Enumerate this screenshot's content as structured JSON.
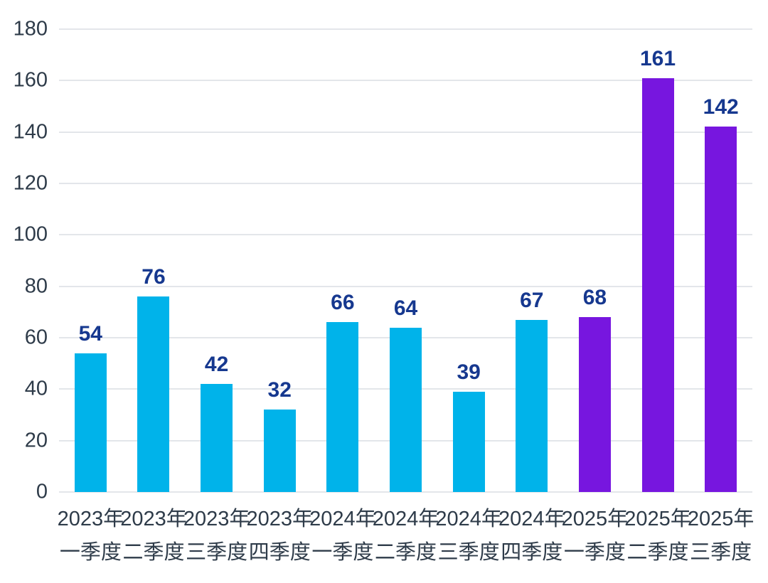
{
  "chart_data": {
    "type": "bar",
    "title": "",
    "xlabel": "",
    "ylabel": "",
    "categories": [
      {
        "line1": "2023年",
        "line2": "一季度"
      },
      {
        "line1": "2023年",
        "line2": "二季度"
      },
      {
        "line1": "2023年",
        "line2": "三季度"
      },
      {
        "line1": "2023年",
        "line2": "四季度"
      },
      {
        "line1": "2024年",
        "line2": "一季度"
      },
      {
        "line1": "2024年",
        "line2": "二季度"
      },
      {
        "line1": "2024年",
        "line2": "三季度"
      },
      {
        "line1": "2024年",
        "line2": "四季度"
      },
      {
        "line1": "2025年",
        "line2": "一季度"
      },
      {
        "line1": "2025年",
        "line2": "二季度"
      },
      {
        "line1": "2025年",
        "line2": "三季度"
      }
    ],
    "values": [
      54,
      76,
      42,
      32,
      66,
      64,
      39,
      67,
      68,
      161,
      142
    ],
    "bar_colors": [
      "#00b3ea",
      "#00b3ea",
      "#00b3ea",
      "#00b3ea",
      "#00b3ea",
      "#00b3ea",
      "#00b3ea",
      "#00b3ea",
      "#7716df",
      "#7716df",
      "#7716df"
    ],
    "value_label_color": "#16388f",
    "axis_label_color": "#2e3b49",
    "gridline_color": "#e3e6ea",
    "ylim": [
      0,
      180
    ],
    "yticks": [
      0,
      20,
      40,
      60,
      80,
      100,
      120,
      140,
      160,
      180
    ],
    "grid": true,
    "legend": false
  }
}
